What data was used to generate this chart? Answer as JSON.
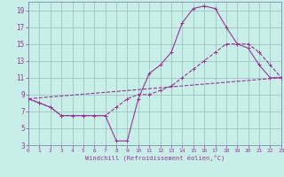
{
  "background_color": "#c8eee8",
  "grid_color": "#99bbbb",
  "line_color": "#993399",
  "spine_color": "#7777aa",
  "xlabel": "Windchill (Refroidissement éolien,°C)",
  "xlim": [
    0,
    23
  ],
  "ylim": [
    3,
    20
  ],
  "xticks": [
    0,
    1,
    2,
    3,
    4,
    5,
    6,
    7,
    8,
    9,
    10,
    11,
    12,
    13,
    14,
    15,
    16,
    17,
    18,
    19,
    20,
    21,
    22,
    23
  ],
  "yticks": [
    3,
    5,
    7,
    9,
    11,
    13,
    15,
    17,
    19
  ],
  "line1_x": [
    0,
    1,
    2,
    3,
    4,
    5,
    6,
    7,
    8,
    9,
    10,
    11,
    12,
    13,
    14,
    15,
    16,
    17,
    18,
    19,
    20,
    21,
    22,
    23
  ],
  "line1_y": [
    8.5,
    8.0,
    7.5,
    6.5,
    6.5,
    6.5,
    6.5,
    6.5,
    3.5,
    3.5,
    8.5,
    11.5,
    12.5,
    14.0,
    17.5,
    19.2,
    19.5,
    19.2,
    17.0,
    15.0,
    14.5,
    12.5,
    11.0,
    11.0
  ],
  "line2_x": [
    0,
    1,
    2,
    3,
    4,
    5,
    6,
    7,
    8,
    9,
    10,
    11,
    12,
    13,
    14,
    15,
    16,
    17,
    18,
    19,
    20,
    21,
    22,
    23
  ],
  "line2_y": [
    8.5,
    8.0,
    7.5,
    6.5,
    6.5,
    6.5,
    6.5,
    6.5,
    7.5,
    8.5,
    9.0,
    9.0,
    9.5,
    10.0,
    11.0,
    12.0,
    13.0,
    14.0,
    15.0,
    15.0,
    15.0,
    14.0,
    12.5,
    11.0
  ],
  "line3_x": [
    0,
    23
  ],
  "line3_y": [
    8.5,
    11.0
  ]
}
